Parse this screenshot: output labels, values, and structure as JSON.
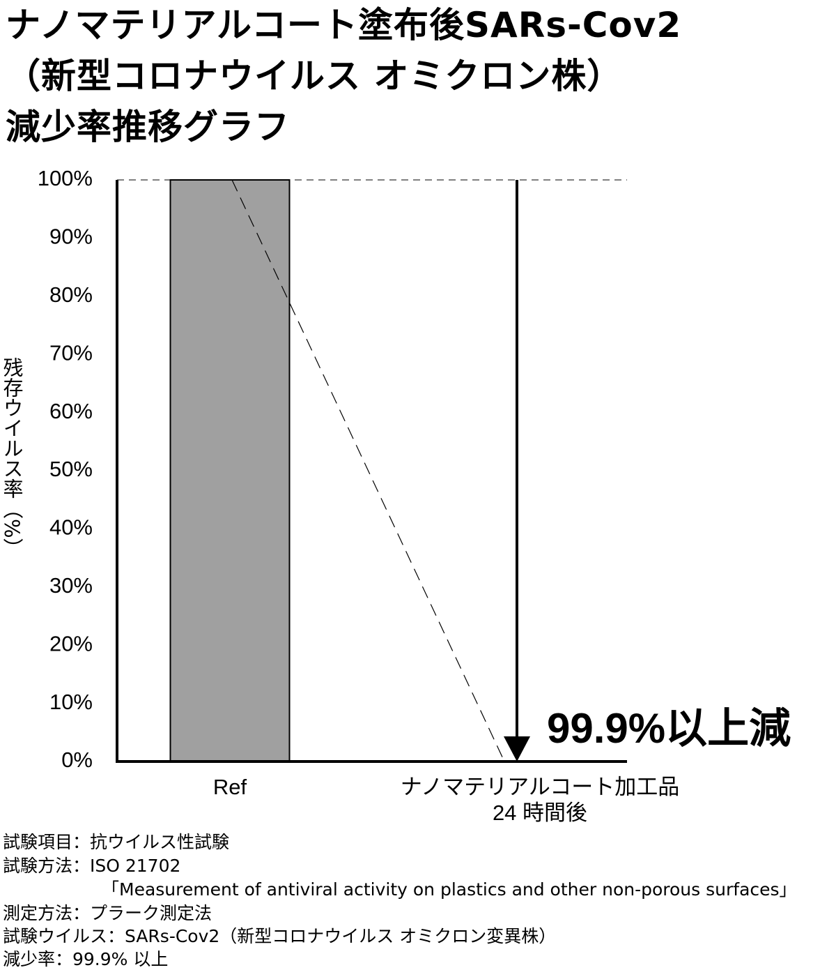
{
  "chart_data": {
    "type": "bar",
    "title": "ナノマテリアルコート塗布後SARs-Cov2\n（新型コロナウイルス オミクロン株）\n減少率推移グラフ",
    "y_label": "残存ウイルス率（%）",
    "categories": [
      "Ref",
      "ナノマテリアルコート加工品\n24 時間後"
    ],
    "values": [
      100,
      0
    ],
    "color": "#a0a0a0",
    "ylim": [
      0,
      100
    ],
    "yticks": [
      {
        "value": 0,
        "label": "0%"
      },
      {
        "value": 10,
        "label": "10%"
      },
      {
        "value": 20,
        "label": "20%"
      },
      {
        "value": 30,
        "label": "30%"
      },
      {
        "value": 40,
        "label": "40%"
      },
      {
        "value": 50,
        "label": "50%"
      },
      {
        "value": 60,
        "label": "60%"
      },
      {
        "value": 70,
        "label": "70%"
      },
      {
        "value": 80,
        "label": "80%"
      },
      {
        "value": 90,
        "label": "90%"
      },
      {
        "value": 100,
        "label": "100%"
      }
    ],
    "annotation": "99.9%以上減",
    "notes": [
      "試験項目：抗ウイルス性試験",
      "試験方法：ISO  21702",
      "「Measurement of antiviral activity on plastics and other non-porous surfaces」",
      "測定方法：プラーク測定法",
      "試験ウイルス：SARs-Cov2（新型コロナウイルス オミクロン変異株）",
      "減少率：99.9% 以上"
    ]
  }
}
